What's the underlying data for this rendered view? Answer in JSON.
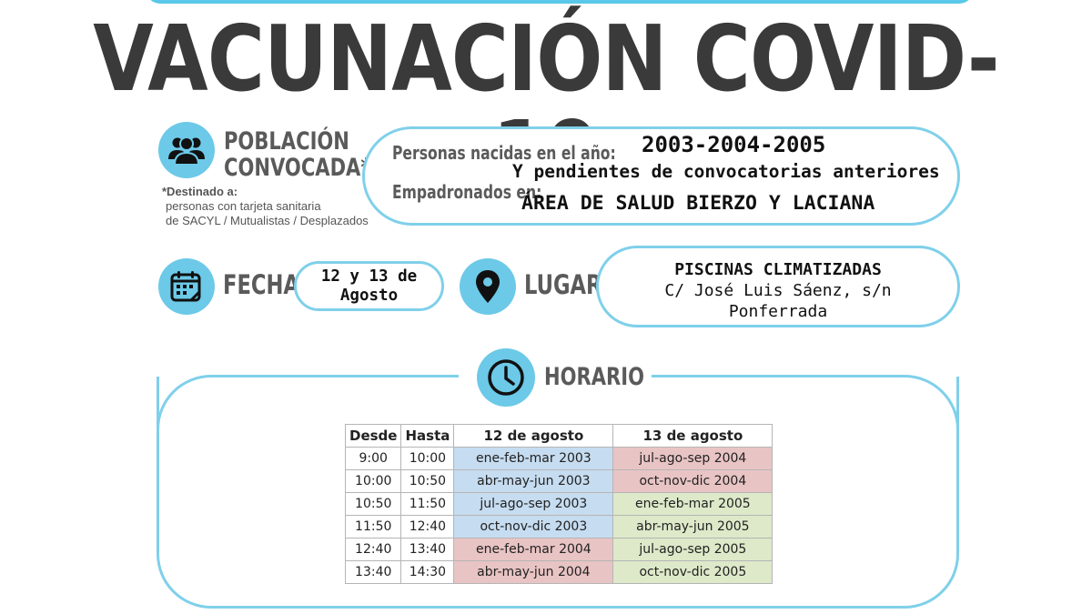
{
  "title": "VACUNACIÓN COVID-19",
  "poblacion": {
    "label_line1": "POBLACIÓN",
    "label_line2": "CONVOCADA*",
    "icon": "people-icon",
    "destinado_title": "*Destinado a:",
    "destinado_line1": "personas con tarjeta sanitaria",
    "destinado_line2": "de SACYL / Mutualistas / Desplazados",
    "nacidos_label": "Personas nacidas en el año:",
    "years": "2003-2004-2005",
    "pendientes": "Y pendientes de convocatorias anteriores",
    "empadronados_label": "Empadronados en:",
    "area": "ÁREA DE SALUD BIERZO Y LACIANA"
  },
  "fecha": {
    "label": "FECHA",
    "icon": "calendar-icon",
    "value_line1": "12 y 13 de",
    "value_line2": "Agosto"
  },
  "lugar": {
    "label": "LUGAR",
    "icon": "location-pin-icon",
    "line1": "PISCINAS CLIMATIZADAS",
    "line2": "C/ José Luis Sáenz, s/n",
    "line3": "Ponferrada"
  },
  "horario": {
    "label": "HORARIO",
    "icon": "clock-icon",
    "headers": [
      "Desde",
      "Hasta",
      "12 de agosto",
      "13 de agosto"
    ],
    "rows": [
      {
        "desde": "9:00",
        "hasta": "10:00",
        "d12": "ene-feb-mar 2003",
        "d13": "jul-ago-sep 2004",
        "c12": "#c6dcf0",
        "c13": "#e9c4c4"
      },
      {
        "desde": "10:00",
        "hasta": "10:50",
        "d12": "abr-may-jun 2003",
        "d13": "oct-nov-dic 2004",
        "c12": "#c6dcf0",
        "c13": "#e9c4c4"
      },
      {
        "desde": "10:50",
        "hasta": "11:50",
        "d12": "jul-ago-sep 2003",
        "d13": "ene-feb-mar 2005",
        "c12": "#c6dcf0",
        "c13": "#dde9c9"
      },
      {
        "desde": "11:50",
        "hasta": "12:40",
        "d12": "oct-nov-dic 2003",
        "d13": "abr-may-jun 2005",
        "c12": "#c6dcf0",
        "c13": "#dde9c9"
      },
      {
        "desde": "12:40",
        "hasta": "13:40",
        "d12": "ene-feb-mar 2004",
        "d13": "jul-ago-sep 2005",
        "c12": "#e9c4c4",
        "c13": "#dde9c9"
      },
      {
        "desde": "13:40",
        "hasta": "14:30",
        "d12": "abr-may-jun 2004",
        "d13": "oct-nov-dic 2005",
        "c12": "#e9c4c4",
        "c13": "#dde9c9"
      }
    ]
  },
  "colors": {
    "accent": "#6cc9e8",
    "outline": "#7fd0ea",
    "title": "#3a3a3a",
    "year_2003": "#c6dcf0",
    "year_2004": "#e9c4c4",
    "year_2005": "#dde9c9"
  }
}
